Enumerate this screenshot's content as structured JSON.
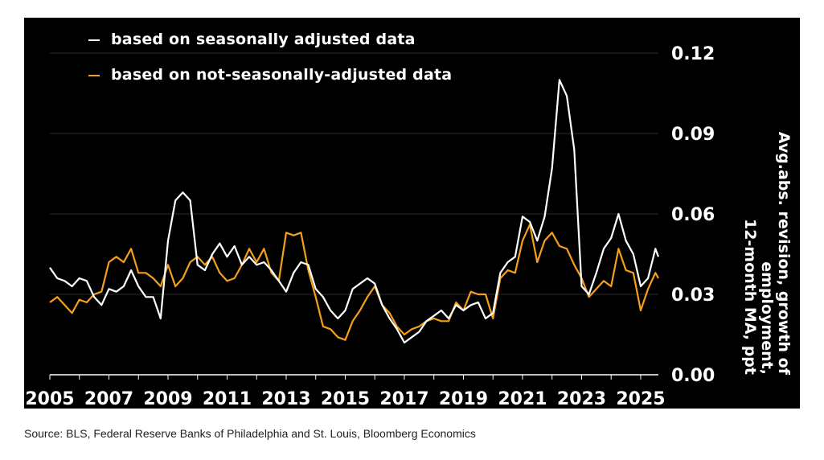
{
  "chart_data": {
    "type": "line",
    "title": "",
    "xlabel": "",
    "ylabel": [
      "Avg.abs. revision, growth of",
      "employment,",
      "12-month MA, ppt"
    ],
    "xlim": [
      2005,
      2025.6
    ],
    "ylim": [
      0,
      0.12
    ],
    "y_ticks": [
      "0.00",
      "0.03",
      "0.06",
      "0.09",
      "0.12"
    ],
    "x_ticks": [
      "2005",
      "2007",
      "2009",
      "2011",
      "2013",
      "2015",
      "2017",
      "2019",
      "2021",
      "2023",
      "2025"
    ],
    "grid": "horizontal",
    "y_axis_position": "right",
    "legend_position": "top-left",
    "background": "#000000",
    "x": [
      2005.0,
      2005.25,
      2005.5,
      2005.75,
      2006.0,
      2006.25,
      2006.5,
      2006.75,
      2007.0,
      2007.25,
      2007.5,
      2007.75,
      2008.0,
      2008.25,
      2008.5,
      2008.75,
      2009.0,
      2009.25,
      2009.5,
      2009.75,
      2010.0,
      2010.25,
      2010.5,
      2010.75,
      2011.0,
      2011.25,
      2011.5,
      2011.75,
      2012.0,
      2012.25,
      2012.5,
      2012.75,
      2013.0,
      2013.25,
      2013.5,
      2013.75,
      2014.0,
      2014.25,
      2014.5,
      2014.75,
      2015.0,
      2015.25,
      2015.5,
      2015.75,
      2016.0,
      2016.25,
      2016.5,
      2016.75,
      2017.0,
      2017.25,
      2017.5,
      2017.75,
      2018.0,
      2018.25,
      2018.5,
      2018.75,
      2019.0,
      2019.25,
      2019.5,
      2019.75,
      2020.0,
      2020.25,
      2020.5,
      2020.75,
      2021.0,
      2021.25,
      2021.5,
      2021.75,
      2022.0,
      2022.25,
      2022.5,
      2022.75,
      2023.0,
      2023.25,
      2023.5,
      2023.75,
      2024.0,
      2024.25,
      2024.5,
      2024.75,
      2025.0,
      2025.25,
      2025.5,
      2025.6
    ],
    "series": [
      {
        "name": "based on seasonally adjusted data",
        "color": "#ffffff",
        "values": [
          0.04,
          0.036,
          0.035,
          0.033,
          0.036,
          0.035,
          0.029,
          0.026,
          0.032,
          0.031,
          0.033,
          0.039,
          0.033,
          0.029,
          0.029,
          0.021,
          0.05,
          0.065,
          0.068,
          0.065,
          0.041,
          0.039,
          0.045,
          0.049,
          0.044,
          0.048,
          0.041,
          0.044,
          0.041,
          0.042,
          0.039,
          0.035,
          0.031,
          0.038,
          0.042,
          0.041,
          0.032,
          0.029,
          0.024,
          0.021,
          0.024,
          0.032,
          0.034,
          0.036,
          0.034,
          0.026,
          0.021,
          0.017,
          0.012,
          0.014,
          0.016,
          0.02,
          0.022,
          0.024,
          0.021,
          0.026,
          0.024,
          0.026,
          0.027,
          0.021,
          0.023,
          0.038,
          0.042,
          0.044,
          0.059,
          0.057,
          0.05,
          0.059,
          0.077,
          0.11,
          0.104,
          0.084,
          0.033,
          0.03,
          0.038,
          0.047,
          0.051,
          0.06,
          0.05,
          0.045,
          0.033,
          0.036,
          0.047,
          0.044
        ]
      },
      {
        "name": "based on not-seasonally-adjusted data",
        "color": "#f5a01a",
        "values": [
          0.027,
          0.029,
          0.026,
          0.023,
          0.028,
          0.027,
          0.03,
          0.031,
          0.042,
          0.044,
          0.042,
          0.047,
          0.038,
          0.038,
          0.036,
          0.033,
          0.041,
          0.033,
          0.036,
          0.042,
          0.044,
          0.041,
          0.044,
          0.038,
          0.035,
          0.036,
          0.041,
          0.047,
          0.042,
          0.047,
          0.038,
          0.035,
          0.053,
          0.052,
          0.053,
          0.039,
          0.029,
          0.018,
          0.017,
          0.014,
          0.013,
          0.02,
          0.024,
          0.029,
          0.033,
          0.026,
          0.023,
          0.018,
          0.015,
          0.017,
          0.018,
          0.02,
          0.021,
          0.02,
          0.02,
          0.027,
          0.024,
          0.031,
          0.03,
          0.03,
          0.021,
          0.036,
          0.039,
          0.038,
          0.05,
          0.056,
          0.042,
          0.05,
          0.053,
          0.048,
          0.047,
          0.041,
          0.036,
          0.029,
          0.032,
          0.035,
          0.033,
          0.047,
          0.039,
          0.038,
          0.024,
          0.032,
          0.038,
          0.036
        ]
      }
    ]
  },
  "source": "Source: BLS, Federal Reserve Banks of Philadelphia and St. Louis, Bloomberg Economics"
}
